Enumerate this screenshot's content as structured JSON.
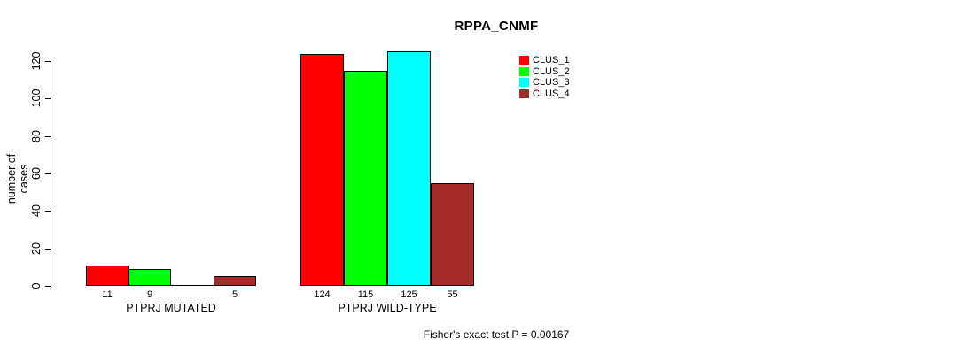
{
  "chart_data": {
    "type": "bar",
    "title": "RPPA_CNMF",
    "xlabel": "",
    "ylabel": "number of cases",
    "ylim": [
      0,
      120
    ],
    "yticks": [
      0,
      20,
      40,
      60,
      80,
      100,
      120
    ],
    "categories": [
      "PTPRJ MUTATED",
      "PTPRJ WILD-TYPE"
    ],
    "series": [
      {
        "name": "CLUS_1",
        "color": "#ff0000",
        "values": [
          11,
          124
        ]
      },
      {
        "name": "CLUS_2",
        "color": "#00ff00",
        "values": [
          9,
          115
        ]
      },
      {
        "name": "CLUS_3",
        "color": "#00ffff",
        "values": [
          0,
          125
        ]
      },
      {
        "name": "CLUS_4",
        "color": "#a52a2a",
        "values": [
          5,
          55
        ]
      }
    ],
    "value_labels": [
      [
        "11",
        "9",
        "",
        "5"
      ],
      [
        "124",
        "115",
        "125",
        "55"
      ]
    ],
    "legend_position": "top-right",
    "grid": false,
    "annotation": "Fisher's exact test P = 0.00167"
  },
  "colors": {
    "axis": "#000000",
    "background": "#ffffff",
    "text": "#000000"
  }
}
